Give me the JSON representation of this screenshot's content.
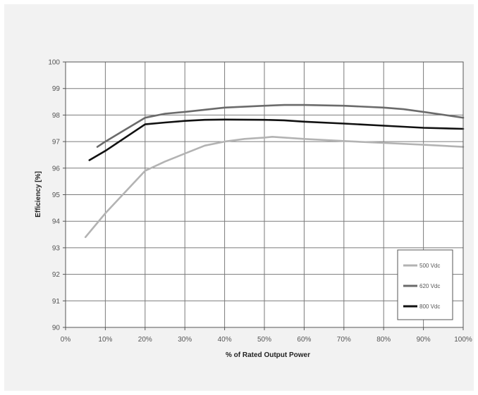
{
  "chart_data": {
    "type": "line",
    "xlabel": "% of Rated Output Power",
    "ylabel": "Efficiency [%]",
    "xlim": [
      0,
      100
    ],
    "ylim": [
      90,
      100
    ],
    "x_ticks": [
      "0%",
      "10%",
      "20%",
      "30%",
      "40%",
      "50%",
      "60%",
      "70%",
      "80%",
      "90%",
      "100%"
    ],
    "y_ticks": [
      "90",
      "91",
      "92",
      "93",
      "94",
      "95",
      "96",
      "97",
      "98",
      "99",
      "100"
    ],
    "grid": true,
    "legend_position": "bottom-right",
    "series": [
      {
        "name": "500 Vdc",
        "color": "#b3b3b3",
        "points": [
          [
            5,
            93.4
          ],
          [
            10,
            94.3
          ],
          [
            15,
            95.1
          ],
          [
            20,
            95.9
          ],
          [
            25,
            96.25
          ],
          [
            30,
            96.55
          ],
          [
            35,
            96.85
          ],
          [
            40,
            97.0
          ],
          [
            45,
            97.1
          ],
          [
            50,
            97.15
          ],
          [
            52,
            97.18
          ],
          [
            55,
            97.15
          ],
          [
            60,
            97.1
          ],
          [
            70,
            97.02
          ],
          [
            80,
            96.95
          ],
          [
            90,
            96.88
          ],
          [
            100,
            96.8
          ]
        ]
      },
      {
        "name": "620 Vdc",
        "color": "#6b6b6b",
        "points": [
          [
            8,
            96.8
          ],
          [
            10,
            97.0
          ],
          [
            15,
            97.45
          ],
          [
            20,
            97.9
          ],
          [
            25,
            98.05
          ],
          [
            30,
            98.12
          ],
          [
            40,
            98.28
          ],
          [
            50,
            98.35
          ],
          [
            55,
            98.38
          ],
          [
            60,
            98.38
          ],
          [
            70,
            98.35
          ],
          [
            80,
            98.28
          ],
          [
            85,
            98.22
          ],
          [
            90,
            98.12
          ],
          [
            100,
            97.9
          ]
        ]
      },
      {
        "name": "800 Vdc",
        "color": "#111111",
        "points": [
          [
            6,
            96.3
          ],
          [
            10,
            96.65
          ],
          [
            15,
            97.15
          ],
          [
            20,
            97.65
          ],
          [
            25,
            97.72
          ],
          [
            30,
            97.78
          ],
          [
            35,
            97.82
          ],
          [
            40,
            97.83
          ],
          [
            50,
            97.82
          ],
          [
            55,
            97.8
          ],
          [
            60,
            97.75
          ],
          [
            70,
            97.68
          ],
          [
            80,
            97.6
          ],
          [
            90,
            97.52
          ],
          [
            100,
            97.48
          ]
        ]
      }
    ]
  }
}
